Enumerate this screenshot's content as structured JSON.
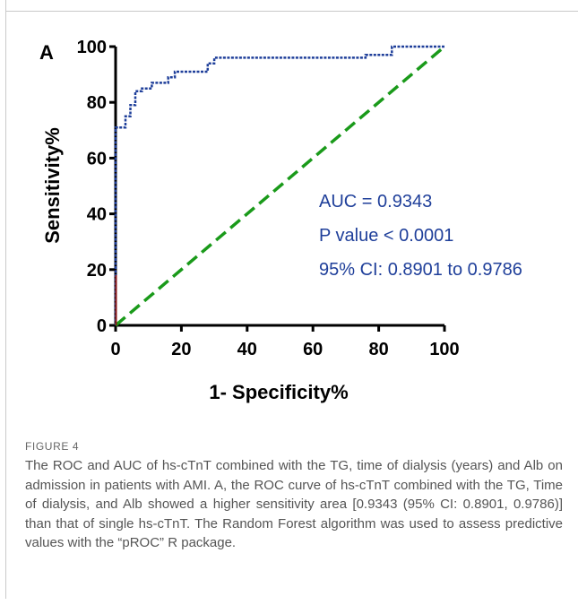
{
  "chart_data": {
    "type": "line",
    "panel_label": "A",
    "xlabel": "1- Specificity%",
    "ylabel": "Sensitivity%",
    "xlim": [
      0,
      100
    ],
    "ylim": [
      0,
      100
    ],
    "xticks": [
      0,
      20,
      40,
      60,
      80,
      100
    ],
    "yticks": [
      0,
      20,
      40,
      60,
      80,
      100
    ],
    "grid": false,
    "series": [
      {
        "style": "step",
        "color": "#1f3f9a",
        "x": [
          0,
          0,
          3,
          3,
          4.5,
          4.5,
          6,
          6,
          8,
          8,
          11,
          11,
          16,
          16,
          18,
          18,
          28,
          28,
          30,
          30,
          76,
          76,
          84,
          84,
          100
        ],
        "y": [
          0,
          71,
          71,
          75,
          75,
          79,
          79,
          84,
          84,
          85,
          85,
          87,
          87,
          89,
          89,
          91,
          91,
          94,
          94,
          96,
          96,
          97,
          97,
          100,
          100
        ]
      },
      {
        "style": "dashed",
        "color": "#1a9a1a",
        "x": [
          0,
          100
        ],
        "y": [
          0,
          100
        ]
      }
    ],
    "annotations": [
      "AUC = 0.9343",
      "P value < 0.0001",
      "95% CI: 0.8901 to 0.9786"
    ],
    "annotation_color": "#1f3f9a"
  },
  "caption": {
    "label": "FIGURE 4",
    "text": "The ROC and AUC of hs-cTnT combined with the TG, time of dialysis (years) and Alb on admission in patients with AMI. A, the ROC curve of hs-cTnT combined with the TG, Time of dialysis, and Alb showed a higher sensitivity area [0.9343 (95% CI: 0.8901, 0.9786)] than that of single hs-cTnT. The Random Forest algorithm was used to assess predictive values with the “pROC” R package."
  }
}
